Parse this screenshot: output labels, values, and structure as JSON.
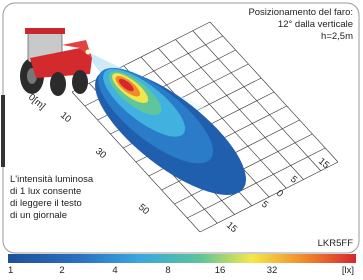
{
  "header": {
    "lines": [
      "Posizionamento del faro:",
      "12° dalla verticale",
      "h=2,5m"
    ]
  },
  "distance_labels": [
    "0[m]",
    "10",
    "30",
    "50"
  ],
  "lateral_labels": [
    "15",
    "5",
    "0",
    "5",
    "15"
  ],
  "note": {
    "lines": [
      "L'intensità luminosa",
      "di 1 lux consente",
      "di leggere il testo",
      "di un giornale"
    ]
  },
  "model": "LKR5FF",
  "scale": {
    "labels": [
      "1",
      "2",
      "4",
      "8",
      "16",
      "32"
    ],
    "unit": "[lx]"
  }
}
